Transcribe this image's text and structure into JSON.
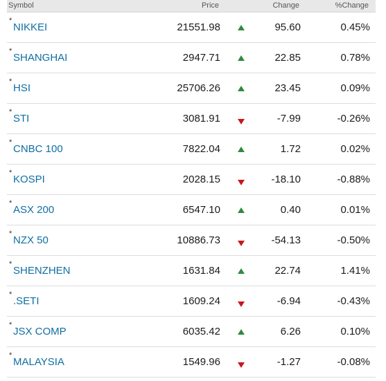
{
  "header": {
    "symbol": "Symbol",
    "price": "Price",
    "change": "Change",
    "pct_change": "%Change"
  },
  "colors": {
    "link": "#0f6ea3",
    "up": "#2e8b3e",
    "down": "#c8161d"
  },
  "rows": [
    {
      "marker": "*",
      "symbol": "NIKKEI",
      "price": "21551.98",
      "direction": "up",
      "change": "95.60",
      "pct_change": "0.45%"
    },
    {
      "marker": "*",
      "symbol": "SHANGHAI",
      "price": "2947.71",
      "direction": "up",
      "change": "22.85",
      "pct_change": "0.78%"
    },
    {
      "marker": "*",
      "symbol": "HSI",
      "price": "25706.26",
      "direction": "up",
      "change": "23.45",
      "pct_change": "0.09%"
    },
    {
      "marker": "*",
      "symbol": "STI",
      "price": "3081.91",
      "direction": "down",
      "change": "-7.99",
      "pct_change": "-0.26%"
    },
    {
      "marker": "*",
      "symbol": "CNBC 100",
      "price": "7822.04",
      "direction": "up",
      "change": "1.72",
      "pct_change": "0.02%"
    },
    {
      "marker": "*",
      "symbol": "KOSPI",
      "price": "2028.15",
      "direction": "down",
      "change": "-18.10",
      "pct_change": "-0.88%"
    },
    {
      "marker": "*",
      "symbol": "ASX 200",
      "price": "6547.10",
      "direction": "up",
      "change": "0.40",
      "pct_change": "0.01%"
    },
    {
      "marker": "*",
      "symbol": "NZX 50",
      "price": "10886.73",
      "direction": "down",
      "change": "-54.13",
      "pct_change": "-0.50%"
    },
    {
      "marker": "*",
      "symbol": "SHENZHEN",
      "price": "1631.84",
      "direction": "up",
      "change": "22.74",
      "pct_change": "1.41%"
    },
    {
      "marker": "*",
      "symbol": ".SETI",
      "price": "1609.24",
      "direction": "down",
      "change": "-6.94",
      "pct_change": "-0.43%"
    },
    {
      "marker": "*",
      "symbol": "JSX COMP",
      "price": "6035.42",
      "direction": "up",
      "change": "6.26",
      "pct_change": "0.10%"
    },
    {
      "marker": "*",
      "symbol": "MALAYSIA",
      "price": "1549.96",
      "direction": "down",
      "change": "-1.27",
      "pct_change": "-0.08%"
    }
  ]
}
